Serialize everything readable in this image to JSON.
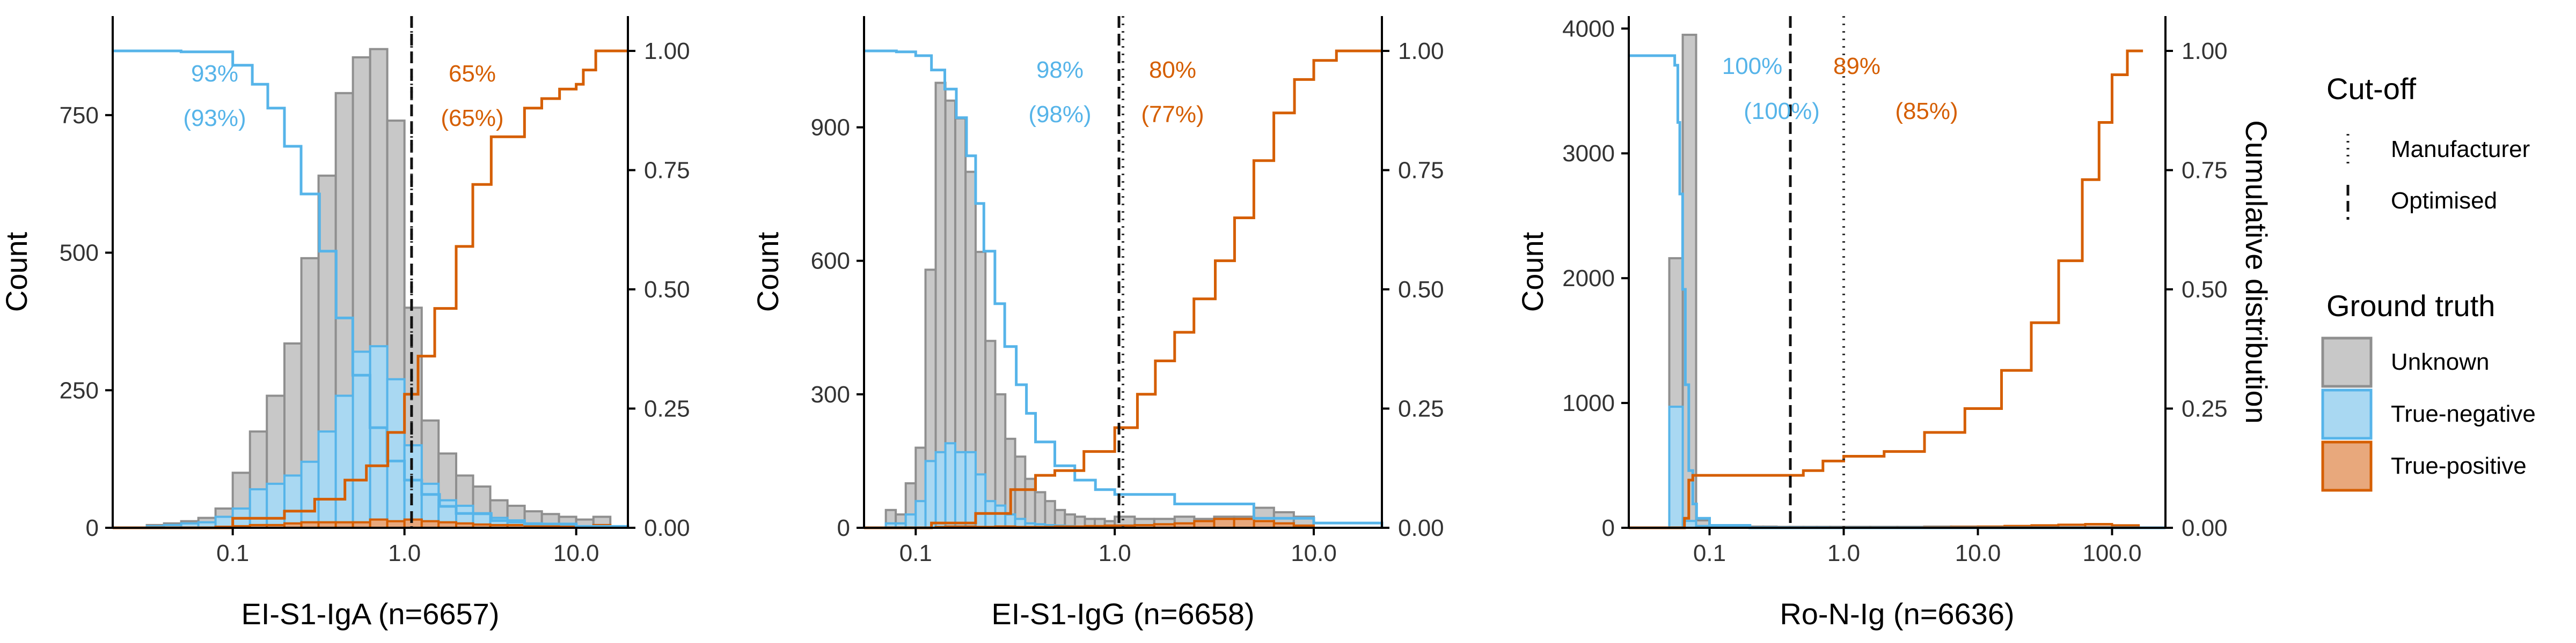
{
  "colors": {
    "unknown_fill": "#c8c8c8",
    "unknown_stroke": "#8f8f8f",
    "negative_fill": "#a9d8f2",
    "negative_stroke": "#56b4e9",
    "positive_fill": "#e8a87c",
    "positive_stroke": "#d55e00"
  },
  "legend": {
    "cutoff_title": "Cut-off",
    "cutoff_items": [
      "Manufacturer",
      "Optimised"
    ],
    "truth_title": "Ground truth",
    "truth_items": [
      "Unknown",
      "True-negative",
      "True-positive"
    ]
  },
  "chart_data": [
    {
      "type": "histogram_with_cumulative_lines",
      "xlabel": "EI-S1-IgA (n=6657)",
      "ylabel": "Count",
      "y2label": "",
      "x_scale": "log10",
      "xlim": [
        0.02,
        20
      ],
      "xticks": [
        0.1,
        1.0,
        10.0
      ],
      "xtick_labels": [
        "0.1",
        "1.0",
        "10.0"
      ],
      "ylim": [
        0,
        930
      ],
      "yticks": [
        0,
        250,
        500,
        750
      ],
      "y2ticks": [
        "0.00",
        "0.25",
        "0.50",
        "0.75",
        "1.00"
      ],
      "cutoffs": {
        "manufacturer": 1.1,
        "optimised": 1.1
      },
      "annotations": {
        "neg_pct": "93%",
        "neg_pct_paren": "(93%)",
        "pos_pct": "65%",
        "pos_pct_paren": "(65%)"
      },
      "bin_edges": [
        0.0316,
        0.0398,
        0.0501,
        0.0631,
        0.0794,
        0.1,
        0.126,
        0.158,
        0.2,
        0.251,
        0.316,
        0.398,
        0.501,
        0.631,
        0.794,
        1.0,
        1.26,
        1.58,
        2.0,
        2.51,
        3.16,
        3.98,
        5.01,
        6.31,
        7.94,
        10.0,
        12.6,
        15.8
      ],
      "unknown_counts": [
        5,
        8,
        12,
        18,
        35,
        100,
        175,
        240,
        335,
        490,
        640,
        790,
        855,
        870,
        740,
        400,
        195,
        135,
        95,
        75,
        50,
        40,
        30,
        25,
        20,
        15,
        20
      ],
      "negative_counts": [
        3,
        5,
        8,
        10,
        20,
        35,
        70,
        80,
        95,
        120,
        175,
        240,
        320,
        330,
        270,
        150,
        80,
        50,
        40,
        25,
        18,
        10,
        8,
        5,
        3,
        2,
        1
      ],
      "positive_counts": [
        0,
        0,
        0,
        0,
        2,
        3,
        5,
        5,
        8,
        10,
        10,
        10,
        10,
        15,
        12,
        15,
        12,
        10,
        8,
        6,
        5,
        5,
        4,
        3,
        2,
        2,
        5
      ],
      "neg_cdf": [
        [
          0.02,
          1.0
        ],
        [
          0.05,
          0.998
        ],
        [
          0.1,
          0.97
        ],
        [
          0.13,
          0.93
        ],
        [
          0.16,
          0.88
        ],
        [
          0.2,
          0.8
        ],
        [
          0.25,
          0.7
        ],
        [
          0.32,
          0.58
        ],
        [
          0.4,
          0.44
        ],
        [
          0.5,
          0.32
        ],
        [
          0.63,
          0.21
        ],
        [
          0.79,
          0.14
        ],
        [
          1.0,
          0.1
        ],
        [
          1.26,
          0.07
        ],
        [
          1.6,
          0.045
        ],
        [
          2.0,
          0.03
        ],
        [
          3.2,
          0.015
        ],
        [
          5.0,
          0.008
        ],
        [
          10.0,
          0.003
        ],
        [
          20,
          0.0
        ]
      ],
      "pos_cdf": [
        [
          0.02,
          0.0
        ],
        [
          0.05,
          0.0
        ],
        [
          0.1,
          0.02
        ],
        [
          0.2,
          0.035
        ],
        [
          0.3,
          0.06
        ],
        [
          0.45,
          0.1
        ],
        [
          0.6,
          0.13
        ],
        [
          0.8,
          0.2
        ],
        [
          1.0,
          0.28
        ],
        [
          1.2,
          0.36
        ],
        [
          1.5,
          0.46
        ],
        [
          2.0,
          0.59
        ],
        [
          2.5,
          0.72
        ],
        [
          3.2,
          0.82
        ],
        [
          5.0,
          0.88
        ],
        [
          6.3,
          0.9
        ],
        [
          8.0,
          0.92
        ],
        [
          10.0,
          0.93
        ],
        [
          11.0,
          0.96
        ],
        [
          13.0,
          1.0
        ],
        [
          20,
          1.0
        ]
      ]
    },
    {
      "type": "histogram_with_cumulative_lines",
      "xlabel": "EI-S1-IgG (n=6658)",
      "ylabel": "Count",
      "y2label": "",
      "x_scale": "log10",
      "xlim": [
        0.055,
        22
      ],
      "xticks": [
        0.1,
        1.0,
        10.0
      ],
      "xtick_labels": [
        "0.1",
        "1.0",
        "10.0"
      ],
      "ylim": [
        0,
        1150
      ],
      "yticks": [
        0,
        300,
        600,
        900
      ],
      "y2ticks": [
        "0.00",
        "0.25",
        "0.50",
        "0.75",
        "1.00"
      ],
      "cutoffs": {
        "manufacturer": 1.1,
        "optimised": 1.05
      },
      "annotations": {
        "neg_pct": "98%",
        "neg_pct_paren": "(98%)",
        "pos_pct": "80%",
        "pos_pct_paren": "(77%)"
      },
      "bin_edges": [
        0.0708,
        0.0794,
        0.0891,
        0.1,
        0.112,
        0.126,
        0.141,
        0.158,
        0.178,
        0.2,
        0.224,
        0.251,
        0.282,
        0.316,
        0.355,
        0.398,
        0.447,
        0.501,
        0.562,
        0.631,
        0.708,
        0.794,
        0.891,
        1.0,
        1.26,
        1.58,
        2.0,
        2.51,
        3.16,
        3.98,
        5.01,
        6.31,
        7.94,
        10.0
      ],
      "unknown_counts": [
        40,
        30,
        100,
        180,
        580,
        1000,
        960,
        920,
        800,
        620,
        420,
        300,
        200,
        160,
        110,
        80,
        60,
        40,
        30,
        25,
        20,
        20,
        15,
        25,
        20,
        20,
        25,
        20,
        25,
        25,
        45,
        35,
        25
      ],
      "negative_counts": [
        10,
        10,
        30,
        60,
        150,
        170,
        190,
        170,
        170,
        120,
        60,
        50,
        30,
        20,
        10,
        8,
        6,
        5,
        4,
        3,
        3,
        2,
        2,
        5,
        3,
        3,
        2,
        2,
        2,
        2,
        2,
        2,
        2
      ],
      "positive_counts": [
        0,
        0,
        0,
        0,
        0,
        2,
        3,
        3,
        3,
        2,
        2,
        3,
        3,
        2,
        2,
        2,
        2,
        3,
        3,
        3,
        4,
        4,
        5,
        5,
        6,
        8,
        10,
        15,
        20,
        20,
        15,
        10,
        5
      ],
      "neg_cdf": [
        [
          0.055,
          1.0
        ],
        [
          0.08,
          0.998
        ],
        [
          0.1,
          0.99
        ],
        [
          0.12,
          0.96
        ],
        [
          0.14,
          0.92
        ],
        [
          0.16,
          0.86
        ],
        [
          0.18,
          0.78
        ],
        [
          0.2,
          0.68
        ],
        [
          0.22,
          0.58
        ],
        [
          0.25,
          0.47
        ],
        [
          0.28,
          0.38
        ],
        [
          0.32,
          0.3
        ],
        [
          0.36,
          0.24
        ],
        [
          0.4,
          0.18
        ],
        [
          0.5,
          0.13
        ],
        [
          0.63,
          0.1
        ],
        [
          0.8,
          0.08
        ],
        [
          1.0,
          0.07
        ],
        [
          2.0,
          0.05
        ],
        [
          5.0,
          0.02
        ],
        [
          10.0,
          0.01
        ],
        [
          22,
          0.0
        ]
      ],
      "pos_cdf": [
        [
          0.055,
          0.0
        ],
        [
          0.12,
          0.01
        ],
        [
          0.2,
          0.03
        ],
        [
          0.3,
          0.08
        ],
        [
          0.4,
          0.11
        ],
        [
          0.5,
          0.12
        ],
        [
          0.7,
          0.16
        ],
        [
          1.0,
          0.21
        ],
        [
          1.3,
          0.28
        ],
        [
          1.6,
          0.35
        ],
        [
          2.0,
          0.41
        ],
        [
          2.5,
          0.48
        ],
        [
          3.2,
          0.56
        ],
        [
          4.0,
          0.65
        ],
        [
          5.0,
          0.77
        ],
        [
          6.3,
          0.87
        ],
        [
          8.0,
          0.94
        ],
        [
          10.0,
          0.98
        ],
        [
          13.0,
          1.0
        ],
        [
          22,
          1.0
        ]
      ]
    },
    {
      "type": "histogram_with_cumulative_lines",
      "xlabel": "Ro-N-Ig (n=6636)",
      "ylabel": "Count",
      "y2label": "Cumulative distribution",
      "x_scale": "log10",
      "xlim": [
        0.025,
        250
      ],
      "xticks": [
        0.1,
        1.0,
        10.0,
        100.0
      ],
      "xtick_labels": [
        "0.1",
        "1.0",
        "10.0",
        "100.0"
      ],
      "ylim": [
        0,
        4100
      ],
      "yticks": [
        0,
        1000,
        2000,
        3000,
        4000
      ],
      "y2ticks": [
        "0.00",
        "0.25",
        "0.50",
        "0.75",
        "1.00"
      ],
      "cutoffs": {
        "manufacturer": 1.0,
        "optimised": 0.4
      },
      "annotations": {
        "neg_pct": "100%",
        "neg_pct_paren": "(100%)",
        "pos_pct": "89%",
        "pos_pct_paren": "(85%)"
      },
      "bin_edges": [
        0.0501,
        0.0631,
        0.0794,
        0.1,
        0.126,
        0.158,
        0.2,
        0.251,
        0.316,
        0.398,
        0.501,
        0.631,
        0.794,
        1.0,
        1.58,
        2.51,
        3.98,
        6.31,
        10.0,
        15.8,
        25.1,
        39.8,
        63.1,
        100.0,
        158.0
      ],
      "unknown_counts": [
        2160,
        3950,
        60,
        20,
        10,
        10,
        10,
        10,
        8,
        8,
        8,
        8,
        8,
        8,
        8,
        8,
        10,
        10,
        10,
        10,
        10,
        10,
        10,
        10
      ],
      "negative_counts": [
        970,
        55,
        15,
        5,
        5,
        3,
        3,
        3,
        2,
        2,
        2,
        2,
        2,
        2,
        2,
        2,
        2,
        2,
        2,
        2,
        2,
        2,
        2,
        2
      ],
      "positive_counts": [
        0,
        0,
        0,
        0,
        2,
        2,
        2,
        2,
        2,
        2,
        2,
        2,
        3,
        3,
        3,
        3,
        5,
        8,
        10,
        15,
        20,
        25,
        30,
        20
      ],
      "neg_cdf": [
        [
          0.025,
          0.99
        ],
        [
          0.05,
          0.99
        ],
        [
          0.055,
          0.97
        ],
        [
          0.058,
          0.85
        ],
        [
          0.06,
          0.7
        ],
        [
          0.063,
          0.5
        ],
        [
          0.066,
          0.3
        ],
        [
          0.07,
          0.12
        ],
        [
          0.075,
          0.05
        ],
        [
          0.08,
          0.02
        ],
        [
          0.1,
          0.005
        ],
        [
          0.2,
          0.0
        ],
        [
          250,
          0.0
        ]
      ],
      "pos_cdf": [
        [
          0.025,
          0.0
        ],
        [
          0.06,
          0.0
        ],
        [
          0.065,
          0.02
        ],
        [
          0.07,
          0.1
        ],
        [
          0.075,
          0.11
        ],
        [
          0.3,
          0.11
        ],
        [
          0.5,
          0.12
        ],
        [
          0.7,
          0.14
        ],
        [
          1.0,
          0.15
        ],
        [
          2.0,
          0.16
        ],
        [
          4.0,
          0.2
        ],
        [
          8.0,
          0.25
        ],
        [
          15.0,
          0.33
        ],
        [
          25.0,
          0.43
        ],
        [
          40.0,
          0.56
        ],
        [
          60.0,
          0.73
        ],
        [
          80.0,
          0.85
        ],
        [
          100.0,
          0.95
        ],
        [
          130.0,
          1.0
        ],
        [
          170.0,
          1.0
        ]
      ]
    }
  ]
}
